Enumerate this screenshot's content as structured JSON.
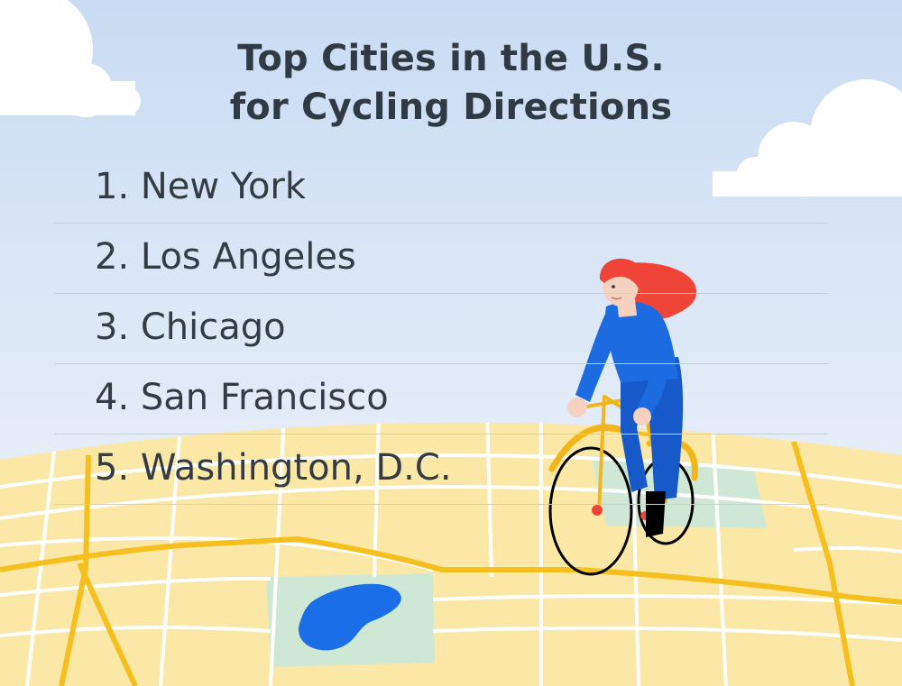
{
  "title": {
    "line1": "Top Cities in the U.S.",
    "line2": "for Cycling Directions"
  },
  "cities": [
    "1. New York",
    "2. Los Angeles",
    "3. Chicago",
    "4. San Francisco",
    "5. Washington, D.C."
  ],
  "colors": {
    "sky_top": "#c9dcf3",
    "sky_bottom": "#f2f6fb",
    "map_land": "#fbe7a6",
    "map_road": "#f5bf1e",
    "park": "#cfe8d6",
    "lake": "#1a6ee8",
    "hair": "#ef4438",
    "shirt": "#1d6be0",
    "pants": "#1859c9",
    "bike_frame": "#f2b61a"
  },
  "icons": [
    "cloud-icon",
    "lake-icon",
    "cyclist-icon",
    "bicycle-icon"
  ]
}
